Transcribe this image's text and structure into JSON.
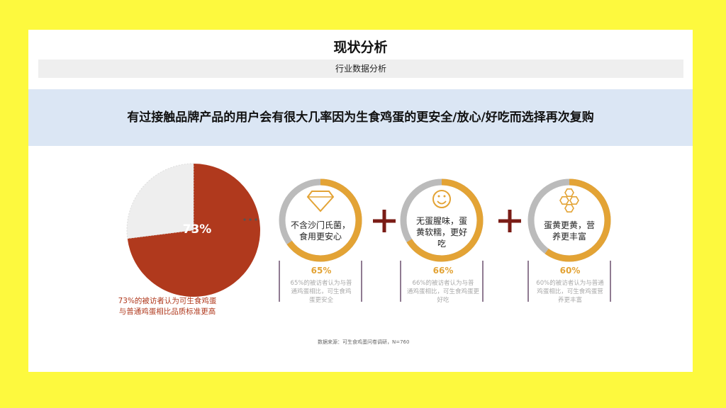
{
  "header": {
    "title": "现状分析",
    "subtitle": "行业数据分析"
  },
  "banner": {
    "text": "有过接触品牌产品的用户会有很大几率因为生食鸡蛋的更安全/放心/好吃而选择再次复购"
  },
  "colors": {
    "background": "#fdf93e",
    "pie_main": "#b0391d",
    "pie_rest": "#eeeeee",
    "ring_fill": "#e3a335",
    "ring_track": "#bbbbbb",
    "plus": "#7a1c16",
    "banner_bg": "#dbe6f4"
  },
  "pie": {
    "caption_line1": "73%的被访者认为可生食鸡蛋",
    "caption_line2": "与普通鸡蛋相比品质标准更高"
  },
  "items": [
    {
      "icon": "diamond-icon",
      "label_line1": "不含沙门氏菌，",
      "label_line2": "食用更安心",
      "label_line3": "",
      "percent_text": "65%",
      "desc_line1": "65%的被访者认为与普",
      "desc_line2": "通鸡蛋相比，可生食鸡",
      "desc_line3": "蛋更安全"
    },
    {
      "icon": "smiley-icon",
      "label_line1": "无蛋腥味，蛋",
      "label_line2": "黄软糯，更好",
      "label_line3": "吃",
      "percent_text": "66%",
      "desc_line1": "66%的被访者认为与普",
      "desc_line2": "通鸡蛋相比，可生食鸡蛋更",
      "desc_line3": "好吃"
    },
    {
      "icon": "honeycomb-icon",
      "label_line1": "蛋黄更黄，营",
      "label_line2": "养更丰富",
      "label_line3": "",
      "percent_text": "60%",
      "desc_line1": "60%的被访者认为与普通",
      "desc_line2": "鸡蛋相比，可生食鸡蛋营",
      "desc_line3": "养更丰富"
    }
  ],
  "source_note": "数据来源：可生食鸡蛋问卷调研，N=760",
  "chart_data": [
    {
      "type": "pie",
      "title": "",
      "slices": [
        {
          "label": "73%",
          "value": 73
        },
        {
          "label": "",
          "value": 27
        }
      ]
    },
    {
      "type": "bar",
      "title": "",
      "categories": [
        "不含沙门氏菌，食用更安心",
        "无蛋腥味，蛋黄软糯，更好吃",
        "蛋黄更黄，营养更丰富"
      ],
      "values": [
        65,
        66,
        60
      ],
      "ylim": [
        0,
        100
      ]
    }
  ]
}
